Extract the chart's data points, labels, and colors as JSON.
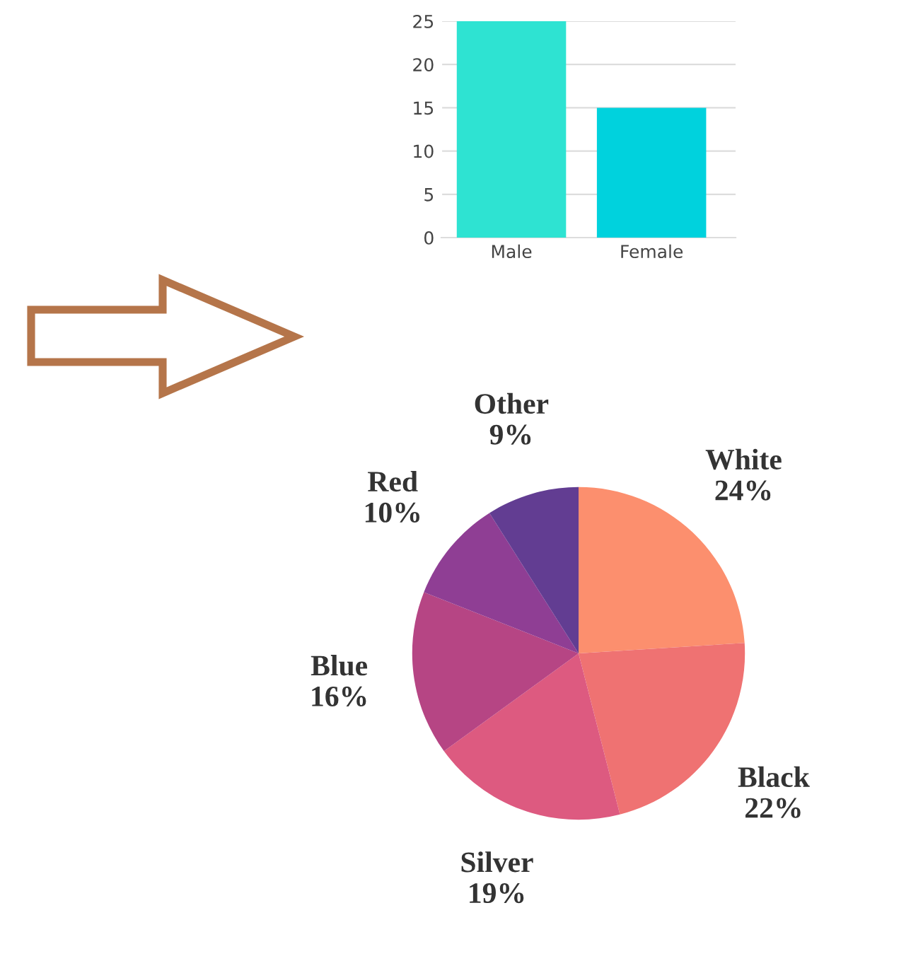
{
  "chart_data": [
    {
      "type": "bar",
      "categories": [
        "Male",
        "Female"
      ],
      "ylim": [
        0,
        25
      ],
      "yticks": [
        0,
        5,
        10,
        15,
        20,
        25
      ],
      "grid": "y",
      "colors": [
        "#2ee3d2",
        "#00d2dd"
      ],
      "values": [
        25,
        15
      ]
    },
    {
      "type": "pie",
      "categories": [
        "White",
        "Black",
        "Silver",
        "Blue",
        "Red",
        "Other"
      ],
      "values": [
        24,
        22,
        19,
        16,
        10,
        9
      ],
      "value_labels": [
        "24%",
        "22%",
        "19%",
        "16%",
        "10%",
        "9%"
      ],
      "colors": [
        "#fc8f6e",
        "#ef7272",
        "#dd5a80",
        "#b64584",
        "#8f3e94",
        "#623d92"
      ]
    }
  ]
}
